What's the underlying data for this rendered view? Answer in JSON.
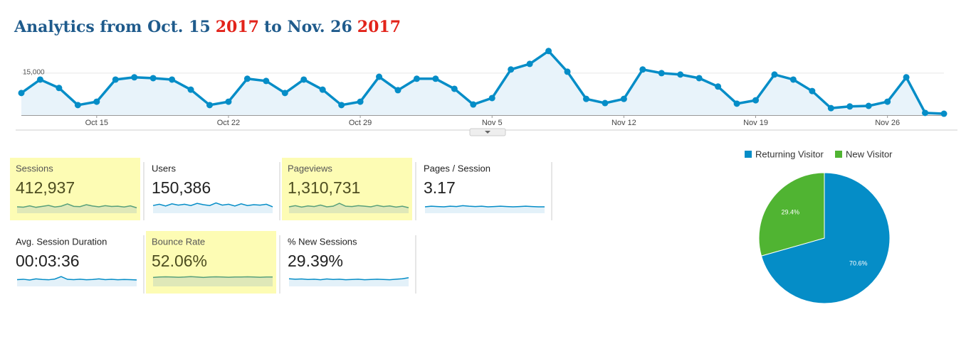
{
  "header": {
    "title": [
      {
        "text": "Analytics from Oct. 15",
        "color": "#1f5b8c"
      },
      {
        "text": "2017",
        "color": "#e2231a"
      },
      {
        "text": "to Nov. 26",
        "color": "#1f5b8c"
      },
      {
        "text": "2017",
        "color": "#e2231a"
      }
    ]
  },
  "chart_data": [
    {
      "type": "line",
      "color": "#058dc7",
      "grid": true,
      "categories": [
        null,
        null,
        null,
        null,
        "Oct 15",
        null,
        null,
        null,
        null,
        null,
        null,
        "Oct 22",
        null,
        null,
        null,
        null,
        null,
        null,
        "Oct 29",
        null,
        null,
        null,
        null,
        null,
        null,
        "Nov 5",
        null,
        null,
        null,
        null,
        null,
        null,
        "Nov 12",
        null,
        null,
        null,
        null,
        null,
        null,
        "Nov 19",
        null,
        null,
        null,
        null,
        null,
        null,
        "Nov 26",
        null,
        null,
        null
      ],
      "values": [
        7900,
        12700,
        9700,
        3600,
        4800,
        12700,
        13500,
        13200,
        12700,
        9100,
        3600,
        4800,
        13000,
        12200,
        7900,
        12700,
        9100,
        3600,
        4800,
        13700,
        8900,
        13000,
        13000,
        9400,
        3800,
        6100,
        16300,
        18300,
        22900,
        15500,
        5800,
        4300,
        5800,
        16300,
        15000,
        14500,
        13200,
        10200,
        4100,
        5300,
        14500,
        12700,
        8600,
        2500,
        3100,
        3300,
        4800,
        13500,
        800,
        500
      ],
      "ylim": [
        0,
        25000
      ],
      "yticks": [
        {
          "value": 15000,
          "label": "15,000"
        }
      ]
    },
    {
      "type": "pie",
      "legend": "top",
      "categories": [
        "Returning Visitor",
        "New Visitor"
      ],
      "values": [
        70.6,
        29.4
      ],
      "value_labels": [
        "70.6%",
        "29.4%"
      ],
      "colors": [
        "#058dc7",
        "#50b432"
      ]
    }
  ],
  "metrics": [
    {
      "name": "Sessions",
      "value": "412,937",
      "highlighted": true,
      "spark": [
        9000,
        8800,
        9600,
        8700,
        9300,
        9900,
        8900,
        9400,
        10800,
        9300,
        9100,
        10300,
        9500,
        9000,
        9700,
        9200,
        9400,
        8900,
        9600,
        8400
      ],
      "spark_lim": [
        5000,
        13000
      ]
    },
    {
      "name": "Users",
      "value": "150,386",
      "highlighted": false,
      "spark": [
        3300,
        3600,
        3200,
        3700,
        3400,
        3600,
        3300,
        3800,
        3500,
        3300,
        3900,
        3400,
        3600,
        3200,
        3700,
        3300,
        3500,
        3400,
        3600,
        3000
      ],
      "spark_lim": [
        1500,
        4500
      ]
    },
    {
      "name": "Pageviews",
      "value": "1,310,731",
      "highlighted": true,
      "spark": [
        29000,
        31000,
        28500,
        30500,
        29500,
        32000,
        29000,
        30000,
        35000,
        30000,
        29500,
        31000,
        30000,
        29000,
        31500,
        29500,
        30500,
        28500,
        30000,
        27500
      ],
      "spark_lim": [
        18000,
        40000
      ]
    },
    {
      "name": "Pages / Session",
      "value": "3.17",
      "highlighted": false,
      "spark": [
        3.1,
        3.2,
        3.15,
        3.1,
        3.2,
        3.15,
        3.3,
        3.2,
        3.15,
        3.2,
        3.1,
        3.15,
        3.2,
        3.15,
        3.1,
        3.15,
        3.2,
        3.15,
        3.1,
        3.1
      ],
      "spark_lim": [
        2.0,
        4.2
      ]
    },
    {
      "name": "Avg. Session Duration",
      "value": "00:03:36",
      "highlighted": false,
      "spark": [
        210,
        215,
        205,
        220,
        212,
        208,
        218,
        250,
        214,
        210,
        216,
        208,
        212,
        220,
        210,
        214,
        208,
        212,
        210,
        206
      ],
      "spark_lim": [
        120,
        290
      ]
    },
    {
      "name": "Bounce Rate",
      "value": "52.06%",
      "highlighted": true,
      "spark": [
        51,
        52,
        52.5,
        52,
        51.5,
        52,
        53,
        52,
        51,
        52,
        52.5,
        52,
        51.5,
        52,
        52,
        52.5,
        52,
        51.5,
        52,
        52
      ],
      "spark_lim": [
        30,
        60
      ]
    },
    {
      "name": "% New Sessions",
      "value": "29.39%",
      "highlighted": false,
      "spark": [
        30,
        29,
        29.5,
        28.5,
        29,
        28,
        29.5,
        28.5,
        29,
        28,
        28.5,
        29,
        28,
        28.5,
        29,
        28.5,
        28,
        29,
        30,
        32
      ],
      "spark_lim": [
        15,
        40
      ]
    }
  ]
}
